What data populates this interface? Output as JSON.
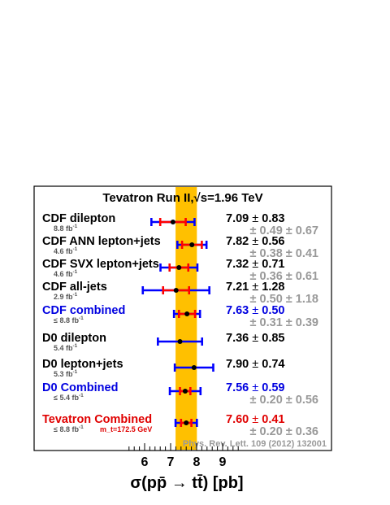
{
  "chart_data": {
    "type": "error-bar-summary",
    "title": "Tevatron Run II,√s=1.96 TeV",
    "xlabel": "σ(pp̄ → tt̄) [pb]",
    "xlim": [
      5.2,
      9.8
    ],
    "xticks": [
      "6",
      "7",
      "8",
      "9"
    ],
    "xtick_values": [
      6,
      7,
      8,
      9
    ],
    "band": {
      "center": 7.6,
      "err": 0.41,
      "color": "#ffc000"
    },
    "reference": "Phys. Rev. Lett. 109 (2012) 132001",
    "measurements": [
      {
        "name": "CDF dilepton",
        "lumi": "8.8 fb",
        "lumi_sup": "-1",
        "value": 7.09,
        "stat": 0.49,
        "syst": 0.67,
        "total": 0.83,
        "value_text": "7.09",
        "total_text": "0.83",
        "stat_text": "0.49",
        "syst_text": "0.67",
        "pm": "±",
        "color": "#000000"
      },
      {
        "name": "CDF ANN lepton+jets",
        "lumi": "4.6 fb",
        "lumi_sup": "-1",
        "value": 7.82,
        "stat": 0.38,
        "syst": 0.41,
        "total": 0.56,
        "value_text": "7.82",
        "total_text": "0.56",
        "stat_text": "0.38",
        "syst_text": "0.41",
        "pm": "±",
        "color": "#000000"
      },
      {
        "name": "CDF SVX lepton+jets",
        "lumi": "4.6 fb",
        "lumi_sup": "-1",
        "value": 7.32,
        "stat": 0.36,
        "syst": 0.61,
        "total": 0.71,
        "value_text": "7.32",
        "total_text": "0.71",
        "stat_text": "0.36",
        "syst_text": "0.61",
        "pm": "±",
        "color": "#000000"
      },
      {
        "name": "CDF all-jets",
        "lumi": "2.9 fb",
        "lumi_sup": "-1",
        "value": 7.21,
        "stat": 0.5,
        "syst": 1.18,
        "total": 1.28,
        "value_text": "7.21",
        "total_text": "1.28",
        "stat_text": "0.50",
        "syst_text": "1.18",
        "pm": "±",
        "color": "#000000"
      },
      {
        "name": "CDF combined",
        "lumi": "≤ 8.8 fb",
        "lumi_sup": "-1",
        "value": 7.63,
        "stat": 0.31,
        "syst": 0.39,
        "total": 0.5,
        "value_text": "7.63",
        "total_text": "0.50",
        "stat_text": "0.31",
        "syst_text": "0.39",
        "pm": "±",
        "color": "#0000e0"
      },
      {
        "name": "D0 dilepton",
        "lumi": "5.4 fb",
        "lumi_sup": "-1",
        "value": 7.36,
        "total": 0.85,
        "value_text": "7.36",
        "total_text": "0.85",
        "pm": "±",
        "color": "#000000"
      },
      {
        "name": "D0 lepton+jets",
        "lumi": "5.3 fb",
        "lumi_sup": "-1",
        "value": 7.9,
        "total": 0.74,
        "value_text": "7.90",
        "total_text": "0.74",
        "pm": "±",
        "color": "#000000"
      },
      {
        "name": "D0 Combined",
        "lumi": "≤ 5.4 fb",
        "lumi_sup": "-1",
        "value": 7.56,
        "stat": 0.2,
        "syst": 0.56,
        "total": 0.59,
        "value_text": "7.56",
        "total_text": "0.59",
        "stat_text": "0.20",
        "syst_text": "0.56",
        "pm": "±",
        "color": "#0000e0"
      },
      {
        "name": "Tevatron Combined",
        "lumi": "≤ 8.8 fb",
        "lumi_sup": "-1",
        "note": "m_t=172.5 GeV",
        "value": 7.6,
        "stat": 0.2,
        "syst": 0.36,
        "total": 0.41,
        "value_text": "7.60",
        "total_text": "0.41",
        "stat_text": "0.20",
        "syst_text": "0.36",
        "pm": "±",
        "color": "#e00000"
      }
    ],
    "colors": {
      "stat_bar": "#ff0000",
      "total_bar": "#0000ff",
      "point": "#000000",
      "frame": "#000000"
    }
  }
}
